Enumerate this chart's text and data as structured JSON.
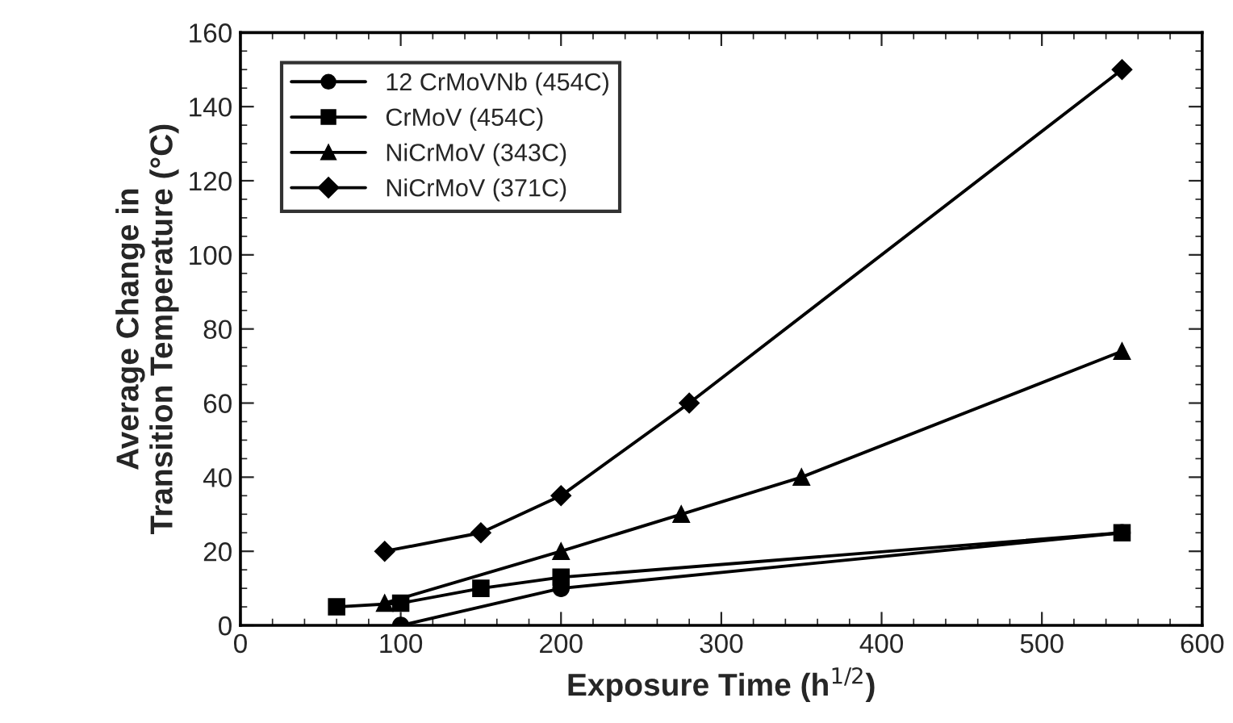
{
  "chart_data": {
    "type": "line",
    "xlabel": "Exposure Time (h$^{1/2}$)",
    "ylabel": "Average Change in\nTransition Temperature (°C)",
    "xlim": [
      0,
      600
    ],
    "xticks": [
      0,
      100,
      200,
      300,
      400,
      500,
      600
    ],
    "ylim": [
      0,
      160
    ],
    "yticks": [
      0,
      20,
      40,
      60,
      80,
      100,
      120,
      140,
      160
    ],
    "grid": false,
    "legend": "top left",
    "series": [
      {
        "name": "12 CrMoVNb (454C)",
        "color": "#000000",
        "marker": "circle",
        "x": [
          100,
          200,
          550
        ],
        "values": [
          0,
          10,
          25
        ]
      },
      {
        "name": "CrMoV (454C)",
        "color": "#000000",
        "marker": "square",
        "x": [
          60,
          100,
          150,
          200,
          550
        ],
        "values": [
          5,
          6,
          10,
          13,
          25
        ]
      },
      {
        "name": "NiCrMoV (343C)",
        "color": "#000000",
        "marker": "triangle",
        "x": [
          90,
          200,
          275,
          350,
          550
        ],
        "values": [
          6,
          20,
          30,
          40,
          74
        ]
      },
      {
        "name": "NiCrMoV (371C)",
        "color": "#000000",
        "marker": "diamond",
        "x": [
          90,
          150,
          200,
          280,
          550
        ],
        "values": [
          20,
          25,
          35,
          60,
          150
        ]
      }
    ]
  }
}
